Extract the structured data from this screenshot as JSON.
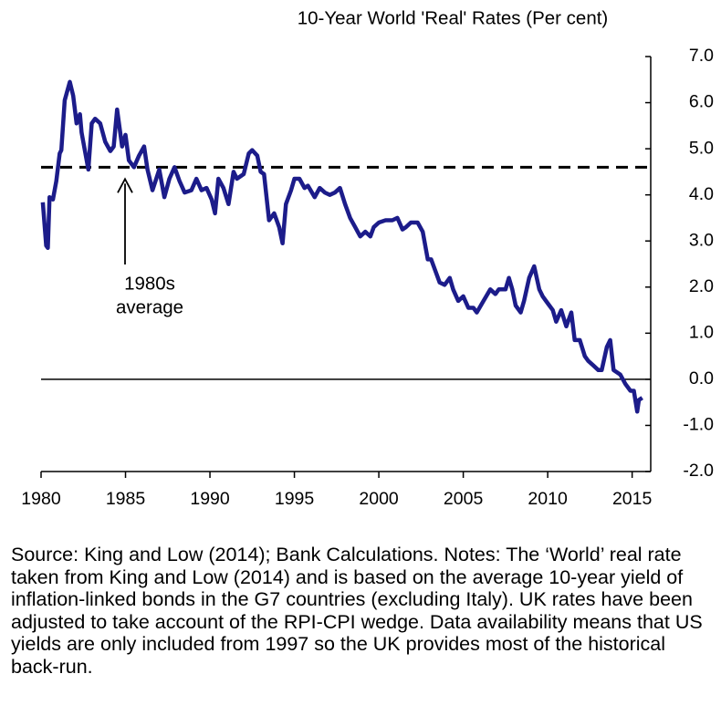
{
  "chart_data": {
    "type": "line",
    "title": "10-Year World 'Real' Rates (Per cent)",
    "x": [
      1980.1,
      1980.3,
      1980.4,
      1980.5,
      1980.7,
      1980.9,
      1981.1,
      1981.2,
      1981.4,
      1981.7,
      1981.9,
      1982.1,
      1982.3,
      1982.4,
      1982.8,
      1983.0,
      1983.2,
      1983.5,
      1983.8,
      1984.1,
      1984.3,
      1984.5,
      1984.8,
      1985.0,
      1985.2,
      1985.5,
      1985.8,
      1986.1,
      1986.3,
      1986.6,
      1987.0,
      1987.3,
      1987.6,
      1987.9,
      1988.2,
      1988.5,
      1988.9,
      1989.2,
      1989.5,
      1989.8,
      1990.1,
      1990.3,
      1990.5,
      1990.8,
      1991.1,
      1991.4,
      1991.6,
      1992.0,
      1992.3,
      1992.5,
      1992.8,
      1993.0,
      1993.2,
      1993.5,
      1993.8,
      1994.1,
      1994.3,
      1994.5,
      1994.8,
      1995.0,
      1995.3,
      1995.6,
      1995.8,
      1996.2,
      1996.5,
      1996.8,
      1997.1,
      1997.4,
      1997.7,
      1998.0,
      1998.3,
      1998.6,
      1998.9,
      1999.2,
      1999.5,
      1999.7,
      2000.0,
      2000.4,
      2000.8,
      2001.1,
      2001.4,
      2001.6,
      2001.9,
      2002.3,
      2002.6,
      2002.9,
      2003.1,
      2003.4,
      2003.6,
      2003.9,
      2004.2,
      2004.4,
      2004.7,
      2005.0,
      2005.3,
      2005.6,
      2005.8,
      2006.2,
      2006.6,
      2006.9,
      2007.1,
      2007.5,
      2007.7,
      2007.9,
      2008.1,
      2008.4,
      2008.6,
      2008.9,
      2009.2,
      2009.5,
      2009.7,
      2010.0,
      2010.3,
      2010.5,
      2010.8,
      2011.1,
      2011.4,
      2011.6,
      2011.9,
      2012.2,
      2012.4,
      2012.7,
      2013.0,
      2013.2,
      2013.5,
      2013.7,
      2013.9,
      2014.1,
      2014.3,
      2014.6,
      2014.9,
      2015.1,
      2015.3,
      2015.4,
      2015.6
    ],
    "series": [
      {
        "name": "World real rate",
        "color": "#1c1c8a",
        "values": [
          3.84,
          2.9,
          2.85,
          3.95,
          3.9,
          4.3,
          4.9,
          4.97,
          6.05,
          6.45,
          6.15,
          5.55,
          5.75,
          5.35,
          4.55,
          5.55,
          5.65,
          5.55,
          5.15,
          4.95,
          5.05,
          5.85,
          5.05,
          5.3,
          4.75,
          4.6,
          4.85,
          5.05,
          4.55,
          4.1,
          4.55,
          3.95,
          4.35,
          4.6,
          4.3,
          4.05,
          4.1,
          4.35,
          4.1,
          4.15,
          3.9,
          3.6,
          4.35,
          4.15,
          3.8,
          4.5,
          4.35,
          4.45,
          4.9,
          4.97,
          4.85,
          4.5,
          4.45,
          3.45,
          3.6,
          3.3,
          2.95,
          3.8,
          4.1,
          4.35,
          4.35,
          4.15,
          4.2,
          3.95,
          4.15,
          4.05,
          4.0,
          4.05,
          4.15,
          3.8,
          3.5,
          3.3,
          3.1,
          3.2,
          3.1,
          3.3,
          3.4,
          3.45,
          3.45,
          3.5,
          3.25,
          3.3,
          3.4,
          3.4,
          3.2,
          2.6,
          2.6,
          2.3,
          2.1,
          2.05,
          2.2,
          1.95,
          1.7,
          1.8,
          1.55,
          1.55,
          1.45,
          1.7,
          1.95,
          1.85,
          1.95,
          1.95,
          2.2,
          1.95,
          1.6,
          1.45,
          1.7,
          2.2,
          2.45,
          1.95,
          1.8,
          1.65,
          1.5,
          1.25,
          1.5,
          1.15,
          1.45,
          0.85,
          0.85,
          0.5,
          0.4,
          0.3,
          0.2,
          0.2,
          0.7,
          0.85,
          0.2,
          0.15,
          0.1,
          -0.1,
          -0.25,
          -0.25,
          -0.7,
          -0.45,
          -0.4
        ]
      }
    ],
    "reference_line": {
      "value": 4.6,
      "label": [
        "1980s",
        "average"
      ]
    },
    "xlim": [
      1980,
      2016.1
    ],
    "xticks": [
      1980,
      1985,
      1990,
      1995,
      2000,
      2005,
      2010,
      2015
    ],
    "ylim": [
      -2,
      7
    ],
    "yticks": [
      {
        "value": -2,
        "label": "-2.0"
      },
      {
        "value": -1,
        "label": "-1.0"
      },
      {
        "value": 0,
        "label": "0.0"
      },
      {
        "value": 1,
        "label": "1.0"
      },
      {
        "value": 2,
        "label": "2.0"
      },
      {
        "value": 3,
        "label": "3.0"
      },
      {
        "value": 4,
        "label": "4.0"
      },
      {
        "value": 5,
        "label": "5.0"
      },
      {
        "value": 6,
        "label": "6.0"
      },
      {
        "value": 7,
        "label": "7.0"
      }
    ],
    "y_axis_side": "right",
    "zero_line": true,
    "note": "Source: King and Low (2014); Bank Calculations. Notes: The ‘World’ real rate taken from King and Low (2014) and is based on the average 10-year yield of inflation-linked bonds in the G7 countries (excluding Italy). UK rates have been adjusted to take account of the RPI-CPI wedge. Data availability means that US yields are only included from 1997 so the UK provides most of the historical back-run."
  }
}
